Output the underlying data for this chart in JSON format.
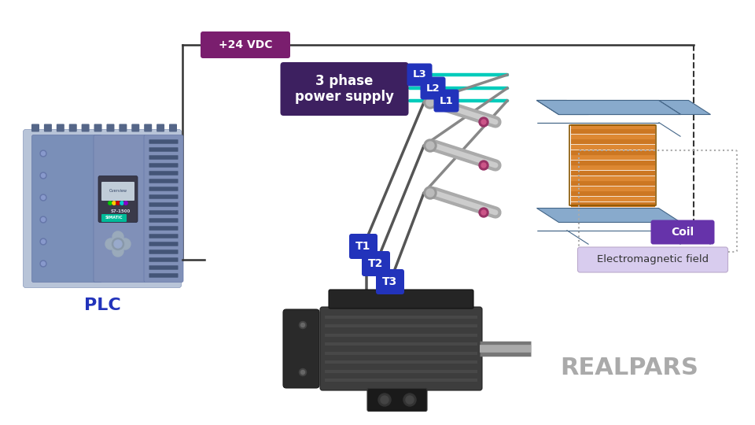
{
  "bg_color": "#ffffff",
  "purple_dark": "#7a1e6e",
  "purple_mid": "#3d2060",
  "purple_label": "#6633aa",
  "blue_bright": "#2233bb",
  "teal_wire": "#00ccbb",
  "line_color": "#333333",
  "gray_wire": "#555555",
  "vdc_label": "+24 VDC",
  "power_supply_label": "3 phase\npower supply",
  "plc_label": "PLC",
  "coil_label": "Coil",
  "em_field_label": "Electromagnetic field",
  "realpars_text": "REALPARS",
  "L_labels": [
    "L3",
    "L2",
    "L1"
  ],
  "T_labels": [
    "T1",
    "T2",
    "T3"
  ],
  "plc_body": "#7a8fb8",
  "plc_light": "#9aaace",
  "plc_dark": "#5a6f98",
  "contactor_blue": "#6688bb",
  "contactor_mid": "#5577aa",
  "contactor_light": "#88aacc",
  "coil_copper": "#cc7722",
  "motor_dark": "#2a2a2a",
  "motor_mid": "#3d3d3d",
  "motor_rib": "#484848"
}
